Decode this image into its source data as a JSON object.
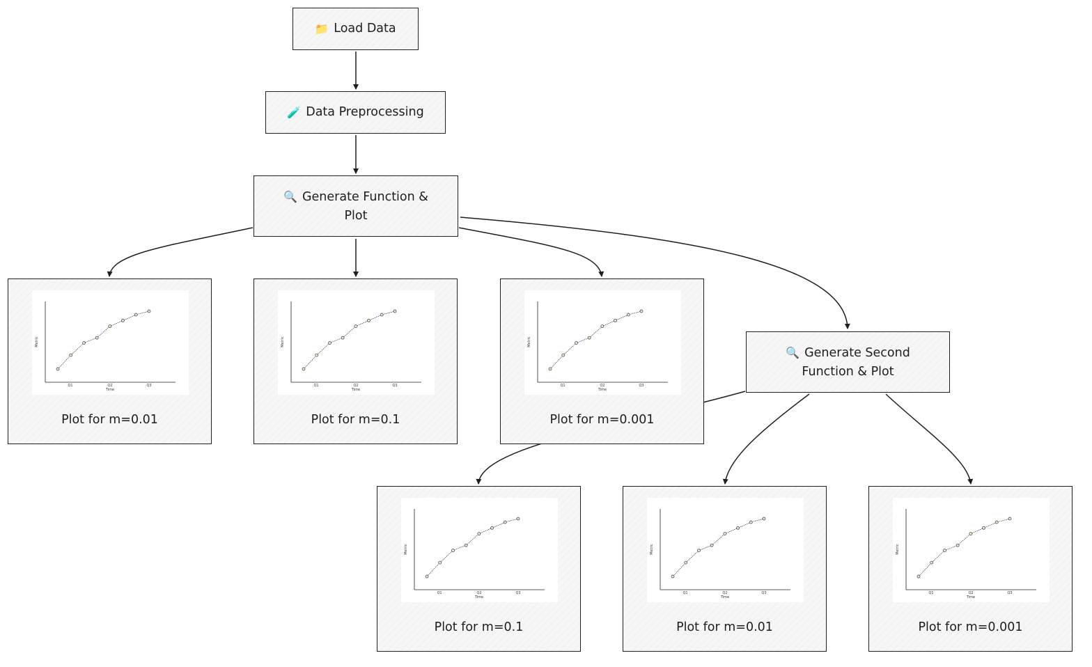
{
  "nodes": {
    "load": {
      "label": "Load Data",
      "icon": "folder-icon",
      "glyph": "📁"
    },
    "preprocess": {
      "label": "Data Preprocessing",
      "icon": "test-tube-icon",
      "glyph": "🧪"
    },
    "generate": {
      "label_line1": "Generate Function &",
      "label_line2": "Plot",
      "icon": "magnifier-icon",
      "glyph": "🔍"
    },
    "generate2": {
      "label_line1": "Generate Second",
      "label_line2": "Function & Plot",
      "icon": "magnifier-icon",
      "glyph": "🔍"
    }
  },
  "plots": [
    {
      "caption": "Plot for m=0.01"
    },
    {
      "caption": "Plot for m=0.1"
    },
    {
      "caption": "Plot for m=0.001"
    },
    {
      "caption": "Plot for m=0.1"
    },
    {
      "caption": "Plot for m=0.01"
    },
    {
      "caption": "Plot for m=0.001"
    }
  ],
  "thumbnail": {
    "xlabel": "Time",
    "ylabel": "Metric",
    "ticks": [
      "Q1",
      "Q2",
      "Q3"
    ]
  },
  "chart_data": {
    "type": "line",
    "x": [
      0,
      1,
      2,
      3,
      4,
      5,
      6,
      7
    ],
    "values": [
      0.0,
      0.24,
      0.45,
      0.54,
      0.74,
      0.84,
      0.94,
      1.0
    ],
    "xlabel": "Time",
    "ylabel": "Metric",
    "x_ticks": [
      "Q1",
      "Q2",
      "Q3"
    ]
  },
  "colors": {
    "stroke": "#1e1e1e",
    "fill": "#f6f6f6",
    "point_fill": "#e8f0c8"
  }
}
